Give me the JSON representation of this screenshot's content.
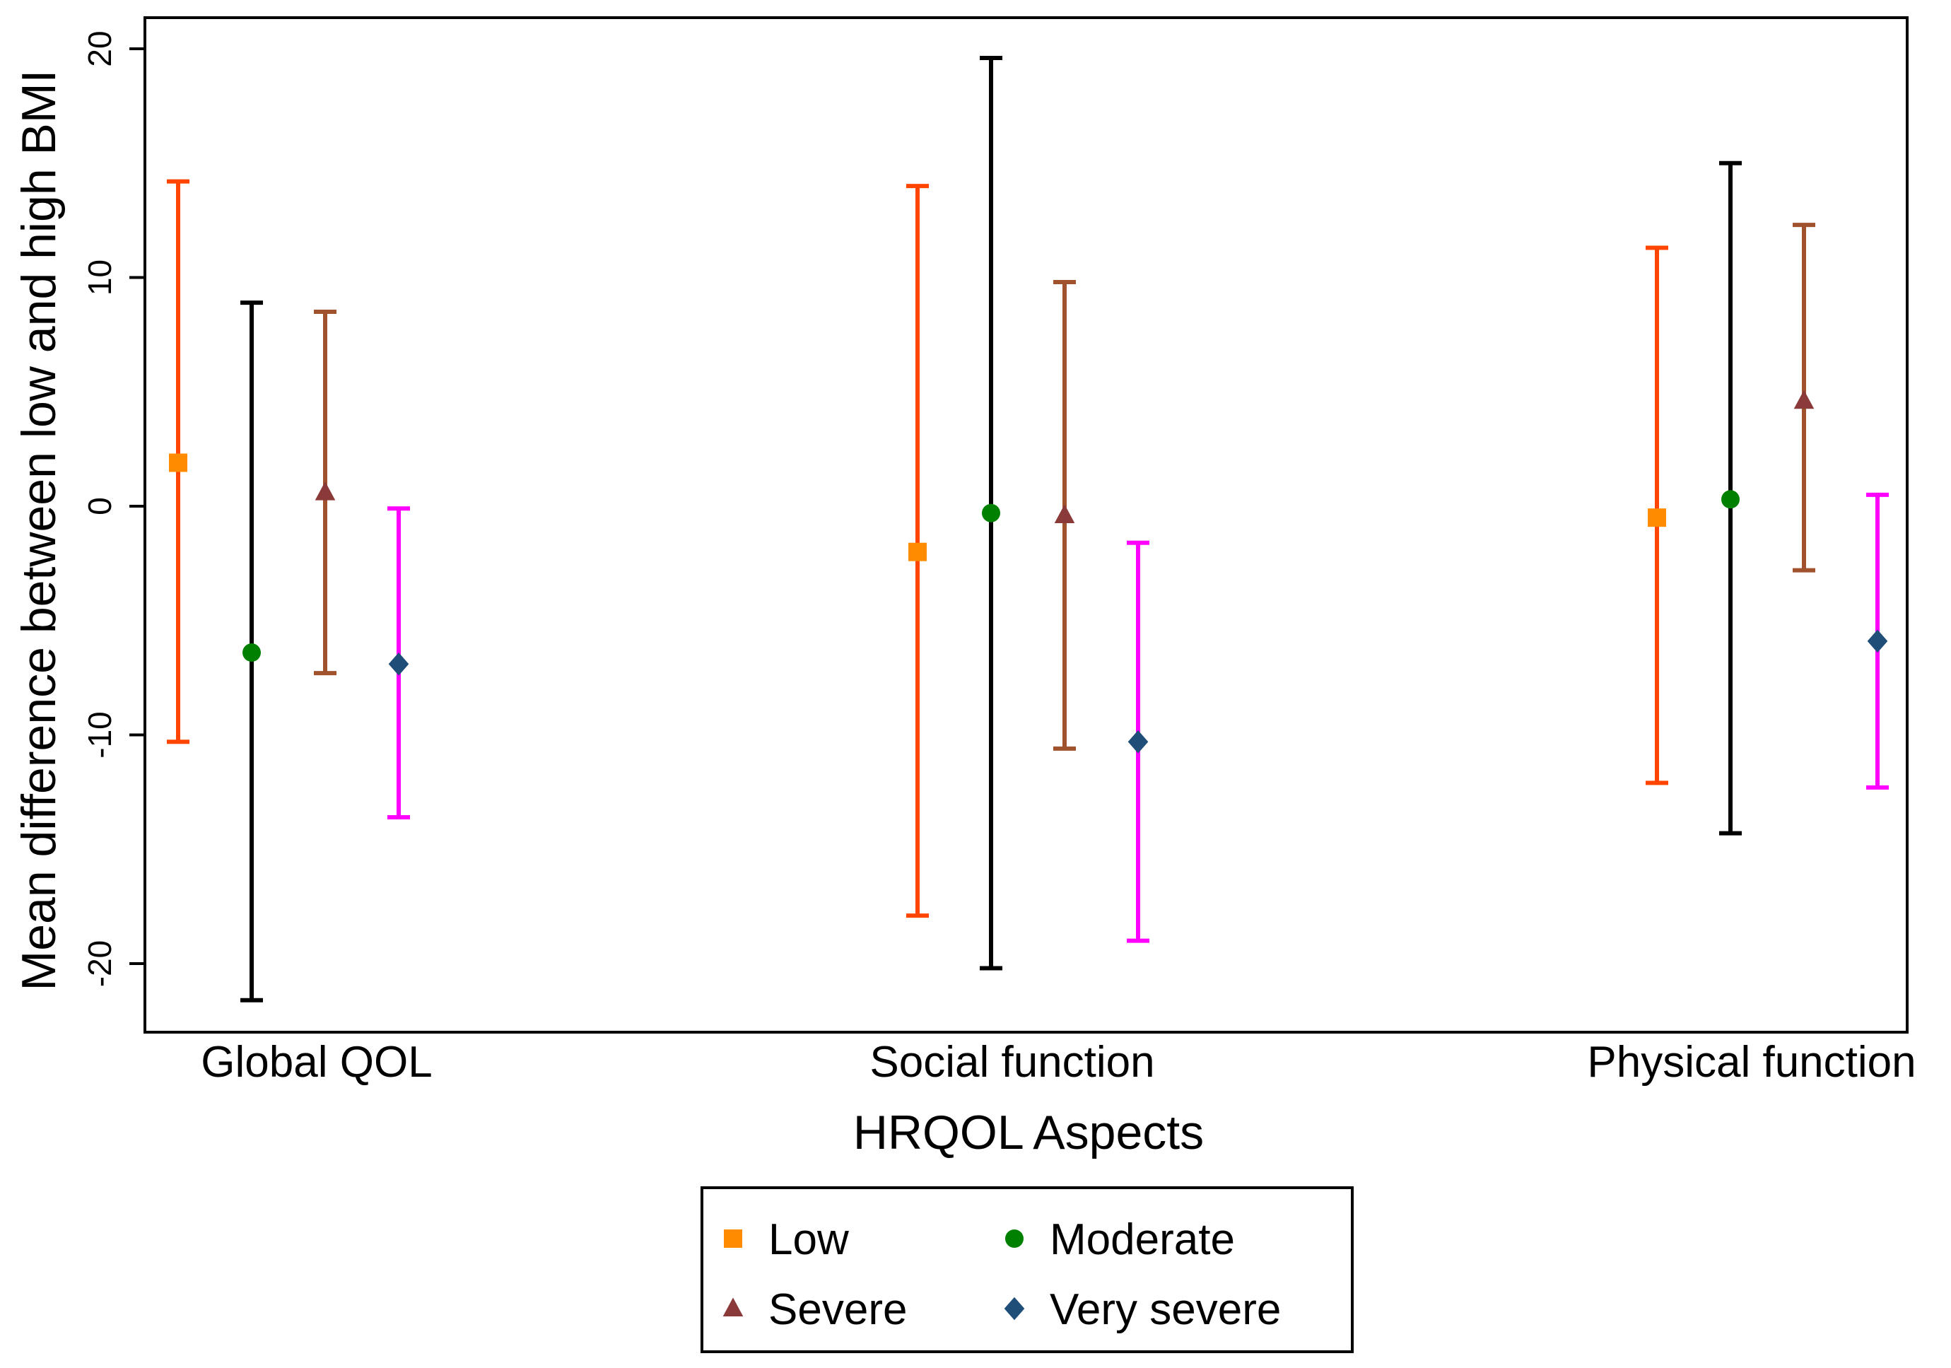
{
  "chart_data": {
    "type": "errorbar",
    "title": "",
    "xlabel": "HRQOL Aspects",
    "ylabel": "Mean difference between low and high BMI",
    "ylim": [
      -23,
      21.5
    ],
    "yticks": [
      20,
      10,
      0,
      -10,
      -20
    ],
    "grid": false,
    "legend_position": "bottom-center",
    "categories": [
      "Global QOL",
      "Social function",
      "Physical function"
    ],
    "series": [
      {
        "name": "Low",
        "marker": "square",
        "marker_color": "#FF8C00",
        "bar_color": "#FF4500",
        "points": [
          {
            "mean": 1.9,
            "lower": -10.3,
            "upper": 14.2
          },
          {
            "mean": -2.0,
            "lower": -17.9,
            "upper": 14.0
          },
          {
            "mean": -0.5,
            "lower": -12.1,
            "upper": 11.3
          }
        ]
      },
      {
        "name": "Moderate",
        "marker": "circle",
        "marker_color": "#008000",
        "bar_color": "#000000",
        "points": [
          {
            "mean": -6.4,
            "lower": -21.6,
            "upper": 8.9
          },
          {
            "mean": -0.3,
            "lower": -20.2,
            "upper": 19.6
          },
          {
            "mean": 0.3,
            "lower": -14.3,
            "upper": 15.0
          }
        ]
      },
      {
        "name": "Severe",
        "marker": "triangle",
        "marker_color": "#8B3A3A",
        "bar_color": "#A0522D",
        "points": [
          {
            "mean": 0.6,
            "lower": -7.3,
            "upper": 8.5
          },
          {
            "mean": -0.4,
            "lower": -10.6,
            "upper": 9.8
          },
          {
            "mean": 4.6,
            "lower": -2.8,
            "upper": 12.3
          }
        ]
      },
      {
        "name": "Very severe",
        "marker": "diamond",
        "marker_color": "#1F4E79",
        "bar_color": "#FF00FF",
        "points": [
          {
            "mean": -6.9,
            "lower": -13.6,
            "upper": -0.1
          },
          {
            "mean": -10.3,
            "lower": -19.0,
            "upper": -1.6
          },
          {
            "mean": -5.9,
            "lower": -12.3,
            "upper": 0.5
          }
        ]
      }
    ]
  }
}
